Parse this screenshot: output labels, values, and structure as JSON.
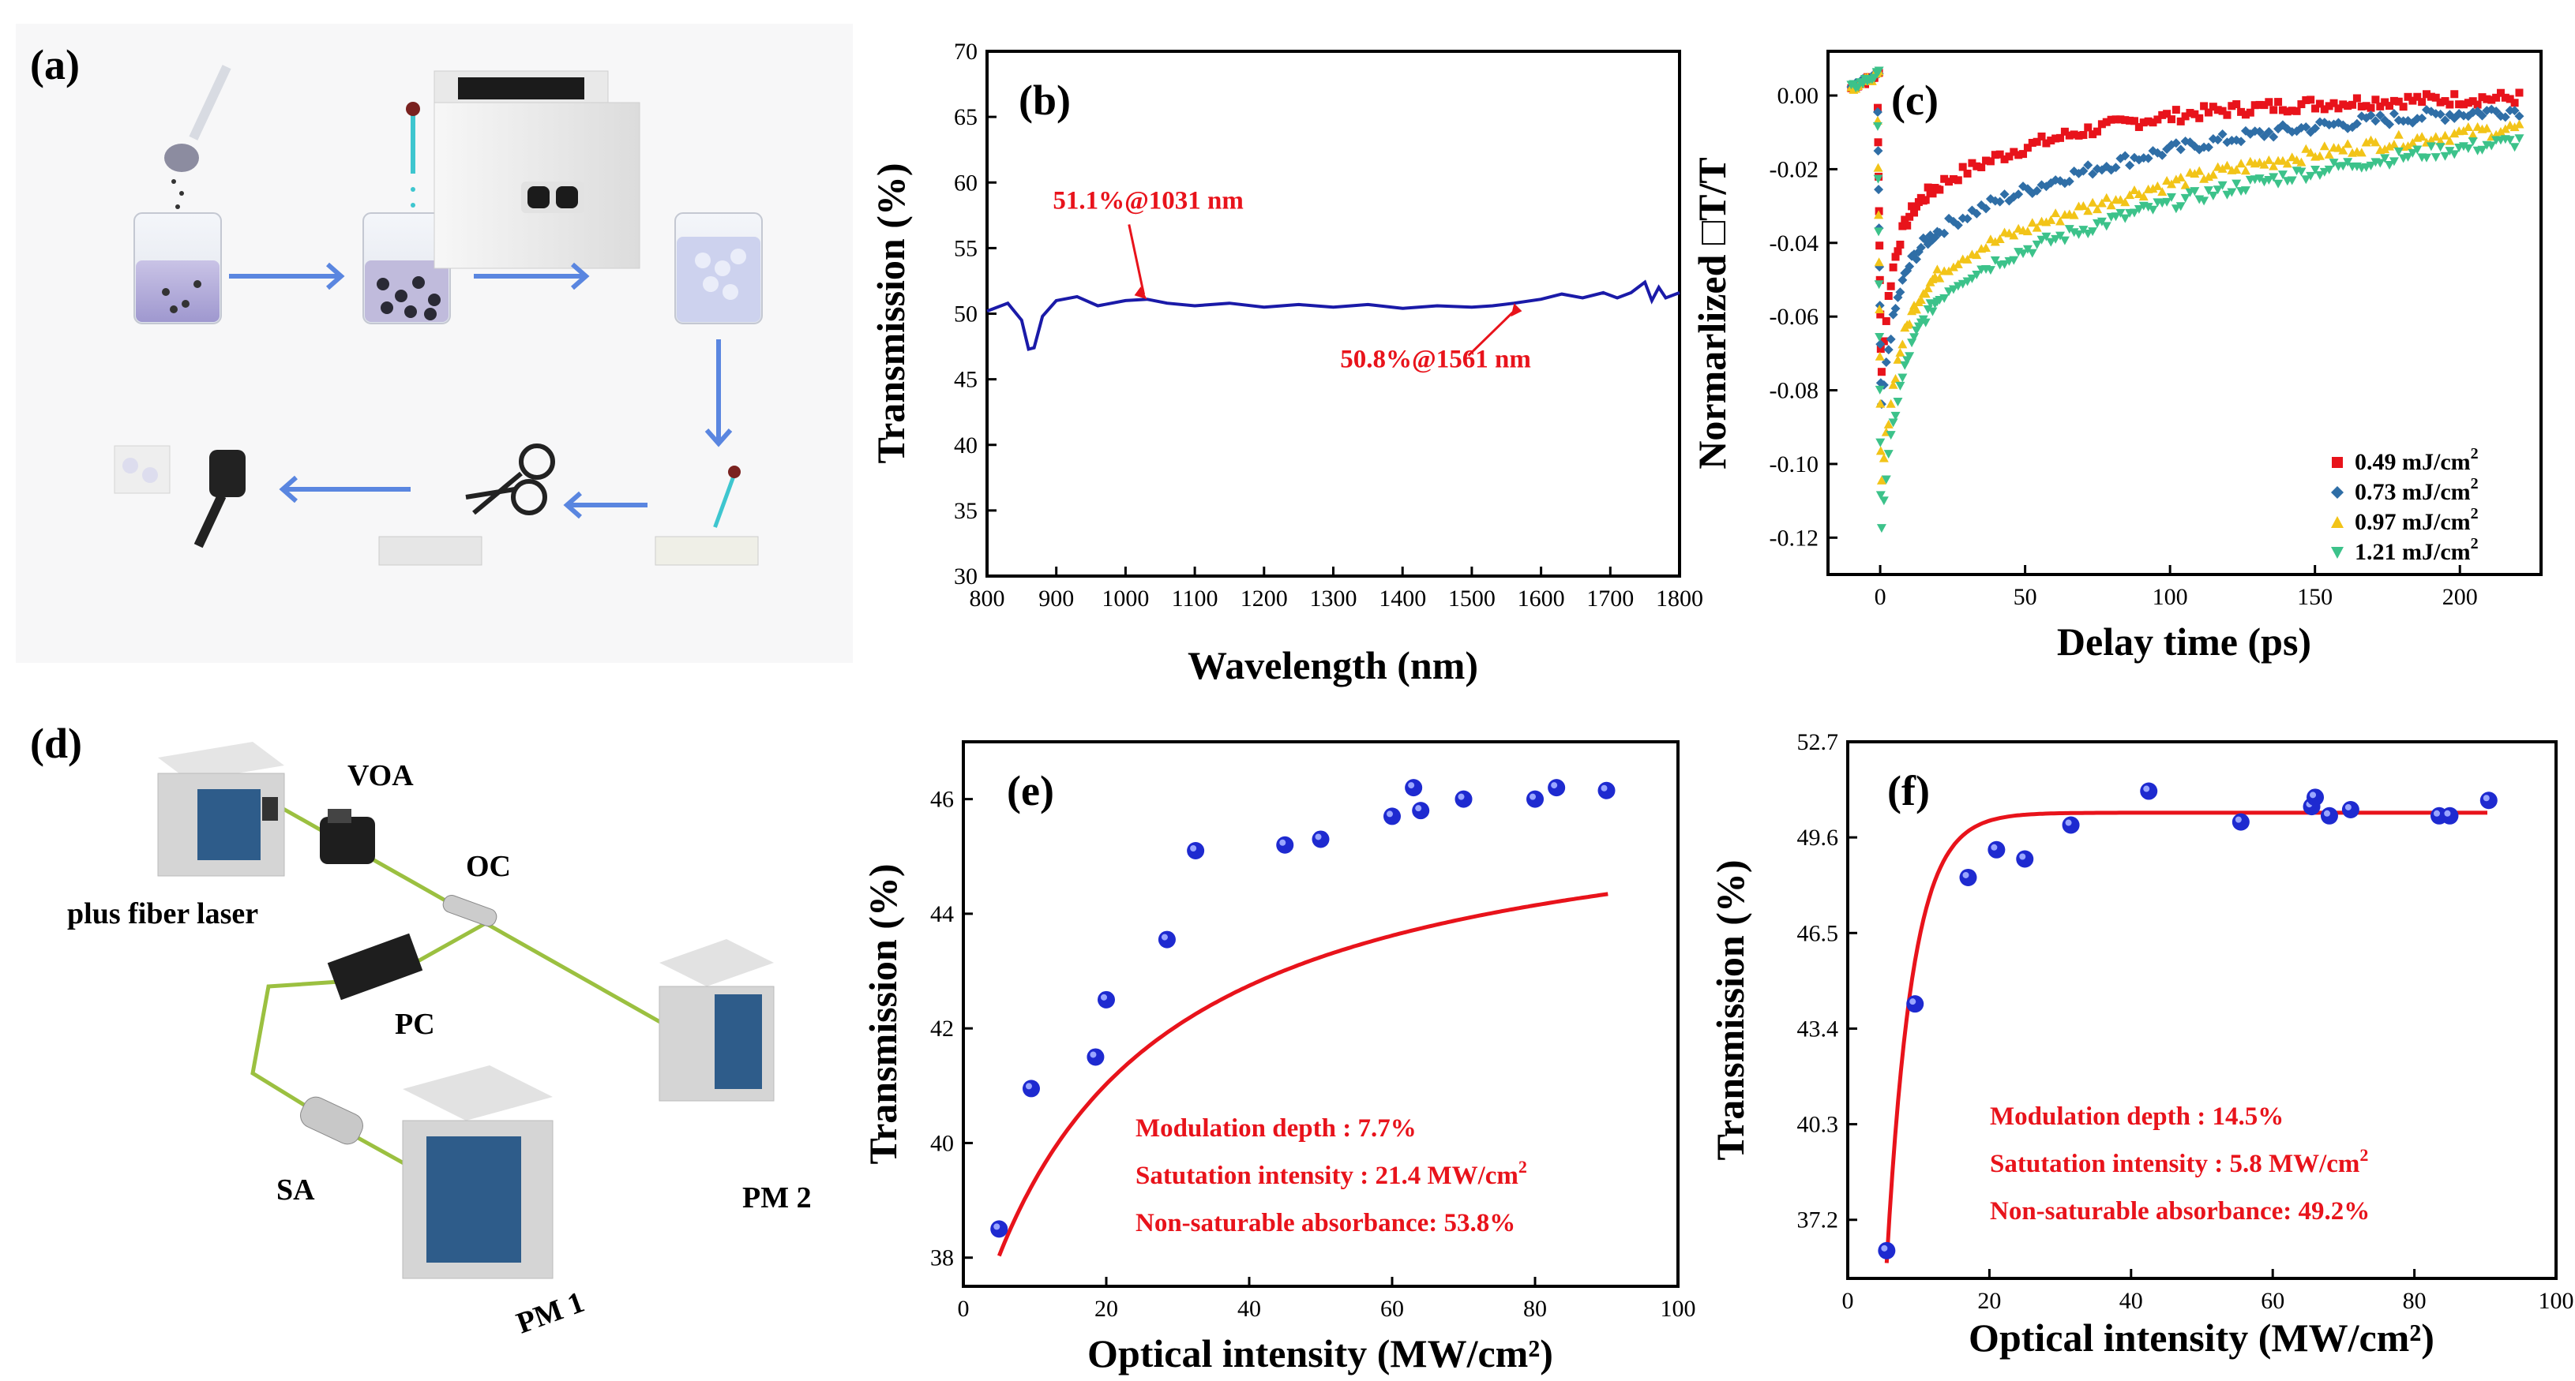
{
  "panels": {
    "a": {
      "label": "(a)"
    },
    "d": {
      "label": "(d)",
      "components": {
        "laser": "plus fiber laser",
        "voa": "VOA",
        "oc": "OC",
        "pc": "PC",
        "sa": "SA",
        "pm1": "PM 1",
        "pm2": "PM 2"
      }
    }
  },
  "chart_data": [
    {
      "id": "b",
      "type": "line",
      "label": "(b)",
      "xlabel": "Wavelength (nm)",
      "ylabel": "Transmission (%)",
      "xlim": [
        800,
        1800
      ],
      "ylim": [
        30,
        70
      ],
      "xticks": [
        800,
        900,
        1000,
        1100,
        1200,
        1300,
        1400,
        1500,
        1600,
        1700,
        1800
      ],
      "yticks": [
        30,
        35,
        40,
        45,
        50,
        55,
        60,
        65,
        70
      ],
      "line_color": "#1a1aa8",
      "x": [
        800,
        830,
        850,
        860,
        868,
        880,
        900,
        930,
        960,
        1000,
        1031,
        1060,
        1100,
        1150,
        1200,
        1250,
        1300,
        1350,
        1400,
        1450,
        1500,
        1530,
        1561,
        1600,
        1630,
        1660,
        1690,
        1710,
        1730,
        1750,
        1760,
        1770,
        1780,
        1800
      ],
      "y": [
        50.2,
        50.8,
        49.5,
        47.3,
        47.4,
        49.8,
        51.0,
        51.3,
        50.6,
        51.0,
        51.1,
        50.8,
        50.6,
        50.8,
        50.5,
        50.7,
        50.5,
        50.7,
        50.4,
        50.6,
        50.5,
        50.6,
        50.8,
        51.1,
        51.5,
        51.2,
        51.6,
        51.2,
        51.6,
        52.4,
        51.0,
        52.0,
        51.2,
        51.6
      ],
      "annotations": [
        {
          "text": "51.1%@1031 nm",
          "x": 1031,
          "y": 51.1
        },
        {
          "text": "50.8%@1561 nm",
          "x": 1561,
          "y": 50.8
        }
      ]
    },
    {
      "id": "c",
      "type": "scatter",
      "label": "(c)",
      "xlabel": "Delay time (ps)",
      "ylabel": "Normarlized □T/T",
      "xlim": [
        -18,
        228
      ],
      "ylim": [
        -0.13,
        0.012
      ],
      "xticks": [
        0,
        50,
        100,
        150,
        200
      ],
      "yticks": [
        0.0,
        -0.02,
        -0.04,
        -0.06,
        -0.08,
        -0.1,
        -0.12
      ],
      "ytick_labels": [
        "0.00",
        "-0.02",
        "-0.04",
        "-0.06",
        "-0.08",
        "-0.10",
        "-0.12"
      ],
      "legend_position": "bottom-right",
      "series": [
        {
          "name": "0.49 mJ/cm",
          "sup": "2",
          "color": "#e8131b",
          "marker": "square",
          "peak": -0.075,
          "a1": 0.045,
          "t1": 4,
          "a2": 0.035,
          "t2": 55
        },
        {
          "name": "0.73 mJ/cm",
          "sup": "2",
          "color": "#2f6ea6",
          "marker": "diamond",
          "peak": -0.085,
          "a1": 0.045,
          "t1": 5,
          "a2": 0.045,
          "t2": 90
        },
        {
          "name": "0.97 mJ/cm",
          "sup": "2",
          "color": "#f2c418",
          "marker": "triangle-up",
          "peak": -0.105,
          "a1": 0.055,
          "t1": 6,
          "a2": 0.055,
          "t2": 120
        },
        {
          "name": "1.21 mJ/cm",
          "sup": "2",
          "color": "#3cc28a",
          "marker": "triangle-down",
          "peak": -0.118,
          "a1": 0.06,
          "t1": 7,
          "a2": 0.06,
          "t2": 140
        }
      ]
    },
    {
      "id": "e",
      "type": "scatter",
      "label": "(e)",
      "xlabel": "Optical intensity (MW/cm²)",
      "ylabel": "Transmission (%)",
      "xlim": [
        0,
        100
      ],
      "ylim": [
        37.5,
        47.0
      ],
      "xticks": [
        0,
        20,
        40,
        60,
        80,
        100
      ],
      "yticks": [
        38,
        40,
        42,
        44,
        46
      ],
      "points": [
        [
          5,
          38.5
        ],
        [
          9.5,
          40.95
        ],
        [
          18.5,
          41.5
        ],
        [
          20,
          42.5
        ],
        [
          28.5,
          43.55
        ],
        [
          32.5,
          45.1
        ],
        [
          45,
          45.2
        ],
        [
          50,
          45.3
        ],
        [
          60,
          45.7
        ],
        [
          63,
          46.2
        ],
        [
          64,
          45.8
        ],
        [
          70,
          46.0
        ],
        [
          80,
          46.0
        ],
        [
          83,
          46.2
        ],
        [
          90,
          46.15
        ]
      ],
      "fit": {
        "Tmax": 46.3,
        "A": 10.2,
        "Is": 21.4
      },
      "fit_color": "#e8131b",
      "point_color": "#1e2ad0",
      "annotations": [
        "Modulation depth : 7.7%",
        "Satutation intensity : 21.4 MW/cm",
        "Non-saturable absorbance: 53.8%"
      ],
      "annotation_sup": "2"
    },
    {
      "id": "f",
      "type": "scatter",
      "label": "(f)",
      "xlabel": "Optical intensity (MW/cm²)",
      "ylabel": "Transmission (%)",
      "xlim": [
        0,
        100
      ],
      "ylim": [
        35.3,
        52.7
      ],
      "xticks": [
        0,
        20,
        40,
        60,
        80,
        100
      ],
      "yticks": [
        37.2,
        40.3,
        43.4,
        46.5,
        49.6,
        52.7
      ],
      "ytick_labels": [
        "37.2",
        "40.3",
        "43.4",
        "46.5",
        "49.6",
        "52.7"
      ],
      "points": [
        [
          5.5,
          36.2
        ],
        [
          9.5,
          44.2
        ],
        [
          17,
          48.3
        ],
        [
          21,
          49.2
        ],
        [
          25,
          48.9
        ],
        [
          31.5,
          50.0
        ],
        [
          42.5,
          51.1
        ],
        [
          55.5,
          50.1
        ],
        [
          65.5,
          50.6
        ],
        [
          66,
          50.9
        ],
        [
          68,
          50.3
        ],
        [
          71,
          50.5
        ],
        [
          83.5,
          50.3
        ],
        [
          85,
          50.3
        ],
        [
          90.5,
          50.8
        ]
      ],
      "fit": {
        "Tmax": 50.4,
        "A": 180,
        "Is": 2.0
      },
      "fit_color": "#e8131b",
      "point_color": "#1e2ad0",
      "annotations": [
        "Modulation depth : 14.5%",
        "Satutation intensity : 5.8 MW/cm",
        "Non-saturable absorbance: 49.2%"
      ],
      "annotation_sup": "2"
    }
  ]
}
